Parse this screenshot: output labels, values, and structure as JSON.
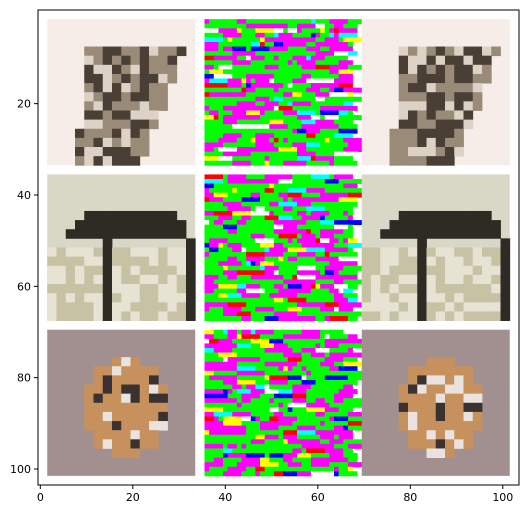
{
  "chart_data": {
    "type": "image-grid",
    "title": "",
    "xlabel": "",
    "ylabel": "",
    "xlim": [
      -0.5,
      103.5
    ],
    "ylim": [
      103.5,
      -0.5
    ],
    "x_ticks": [
      0,
      20,
      40,
      60,
      80,
      100
    ],
    "y_ticks": [
      20,
      40,
      60,
      80,
      100
    ],
    "grid": false,
    "background": "#ffffff",
    "tile_size": 32,
    "tile_gap": 2,
    "rows": 3,
    "columns": 3,
    "column_content": [
      "original image",
      "false-color noise map",
      "reconstructed image"
    ],
    "row_subjects": [
      "truck",
      "pavilion",
      "puppy"
    ],
    "panel_colors": {
      "truck": {
        "bg": "#f6ece8",
        "mid": "#9a8a78",
        "dark": "#4a3f35",
        "light": "#dcd2c6"
      },
      "pavilion": {
        "bg": "#d9d8c6",
        "mid": "#c8c2a4",
        "dark": "#2e2a24",
        "light": "#e6e3d2"
      },
      "puppy": {
        "bg": "#a29090",
        "mid": "#c6915c",
        "dark": "#3a3231",
        "light": "#e9e2de"
      },
      "noise": [
        "#00ff00",
        "#ff00ff",
        "#ff00ff",
        "#00ff00",
        "#ff0000",
        "#00ffff",
        "#ffff00",
        "#ffffff",
        "#0000ff",
        "#00ff00"
      ]
    }
  }
}
